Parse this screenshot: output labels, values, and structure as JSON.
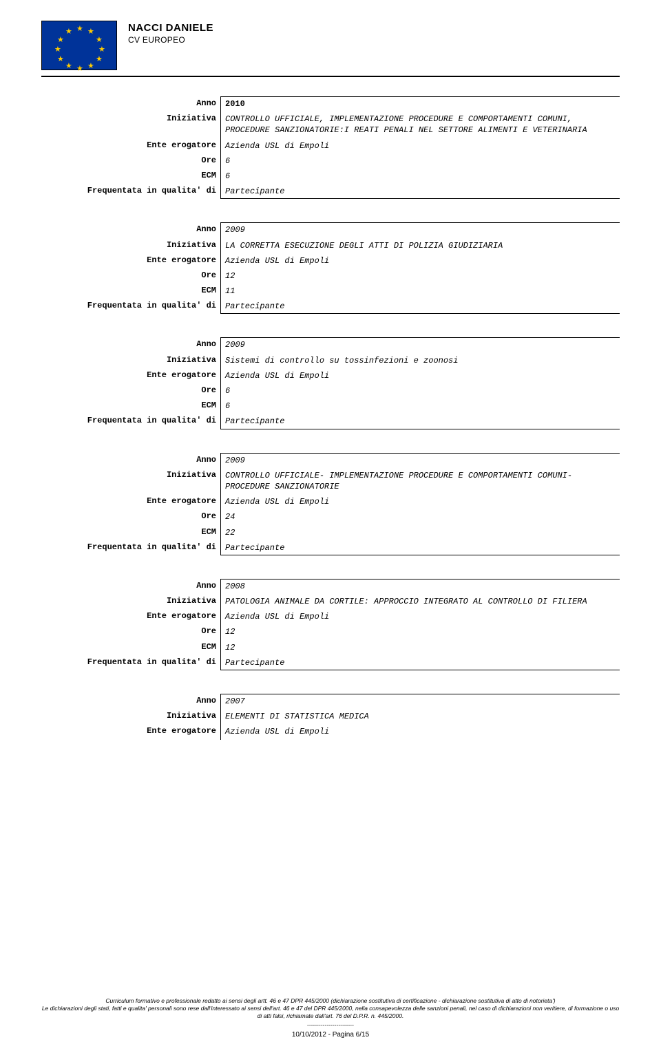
{
  "header": {
    "name": "NACCI DANIELE",
    "subtitle": "CV EUROPEO"
  },
  "labels": {
    "anno": "Anno",
    "iniziativa": "Iniziativa",
    "ente": "Ente erogatore",
    "ore": "Ore",
    "ecm": "ECM",
    "freq": "Frequentata in qualita' di"
  },
  "entries": [
    {
      "anno": "2010",
      "anno_bold": true,
      "iniziativa": "CONTROLLO UFFICIALE, IMPLEMENTAZIONE PROCEDURE E COMPORTAMENTI COMUNI, PROCEDURE SANZIONATORIE:I REATI PENALI NEL SETTORE ALIMENTI E VETERINARIA",
      "ente": "Azienda USL di Empoli",
      "ore": "6",
      "ecm": "6",
      "freq": "Partecipante"
    },
    {
      "anno": "2009",
      "iniziativa": "LA CORRETTA ESECUZIONE DEGLI ATTI DI POLIZIA GIUDIZIARIA",
      "ente": "Azienda USL di Empoli",
      "ore": "12",
      "ecm": "11",
      "freq": "Partecipante"
    },
    {
      "anno": "2009",
      "iniziativa": "Sistemi di controllo su tossinfezioni e zoonosi",
      "ente": "Azienda USL di Empoli",
      "ore": "6",
      "ecm": "6",
      "freq": "Partecipante"
    },
    {
      "anno": "2009",
      "iniziativa": "CONTROLLO UFFICIALE- IMPLEMENTAZIONE PROCEDURE E COMPORTAMENTI COMUNI- PROCEDURE SANZIONATORIE",
      "ente": "Azienda USL di Empoli",
      "ore": "24",
      "ecm": "22",
      "freq": "Partecipante"
    },
    {
      "anno": "2008",
      "iniziativa": "PATOLOGIA ANIMALE DA CORTILE: APPROCCIO INTEGRATO AL CONTROLLO DI FILIERA",
      "ente": "Azienda USL di Empoli",
      "ore": "12",
      "ecm": "12",
      "freq": "Partecipante"
    },
    {
      "anno": "2007",
      "iniziativa": "ELEMENTI DI STATISTICA MEDICA",
      "ente": "Azienda USL di Empoli",
      "partial": true
    }
  ],
  "footer": {
    "line1": "Curriculum formativo e professionale redatto ai sensi degli artt. 46 e 47 DPR 445/2000 (dichiarazione sostitutiva di certificazione  - dichiarazione sostitutiva di atto di notorieta')",
    "line2": "Le dichiarazioni degli stati, fatti e qualita' personali sono rese dall'interessato ai sensi dell'art. 46 e 47 del DPR 445/2000, nella consapevolezza delle sanzioni penali, nel caso di dichiarazioni non veritiere, di formazione o uso di atti falsi, richiamate dall'art. 76 del D.P.R. n.  445/2000.",
    "dashes": "------------------------",
    "page": "10/10/2012 - Pagina 6/15"
  },
  "style": {
    "flag_bg": "#003399",
    "star_color": "#ffcc00"
  }
}
